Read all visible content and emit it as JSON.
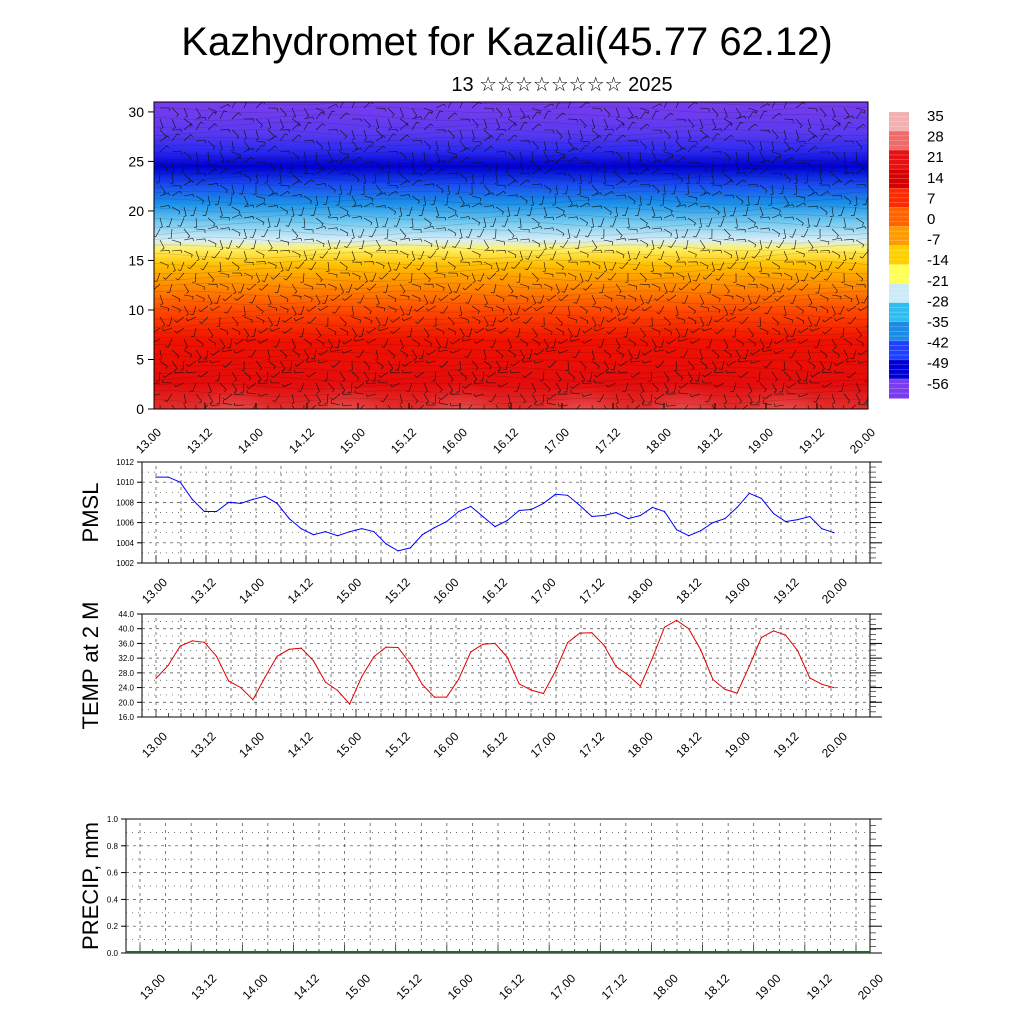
{
  "header": {
    "title": "Kazhydromet for Kazali(45.77 62.12)",
    "subtitle": "13 ☆☆☆☆☆☆☆☆ 2025"
  },
  "chart_data": [
    {
      "type": "heatmap",
      "name": "cross-section",
      "ylim": [
        0,
        31
      ],
      "yticks": [
        "0",
        "5",
        "10",
        "15",
        "20",
        "25",
        "30"
      ],
      "xticks": [
        "13.00",
        "13.12",
        "14.00",
        "14.12",
        "15.00",
        "15.12",
        "16.00",
        "16.12",
        "17.00",
        "17.12",
        "18.00",
        "18.12",
        "19.00",
        "19.12",
        "20.00"
      ],
      "colorbar": {
        "labels": [
          "35",
          "28",
          "21",
          "14",
          "7",
          "0",
          "-7",
          "-14",
          "-21",
          "-28",
          "-35",
          "-42",
          "-49",
          "-56"
        ],
        "colors": [
          "#f2b0b0",
          "#ef6a6a",
          "#e81010",
          "#d60000",
          "#ff2a00",
          "#ff6400",
          "#ff9a00",
          "#ffcf00",
          "#ffff55",
          "#cdebf7",
          "#2ebdf0",
          "#1a8ce8",
          "#2040ff",
          "#0000d6",
          "#7a3cf0"
        ]
      },
      "overlay": "wind-barbs"
    },
    {
      "type": "line",
      "ylabel": "PMSL",
      "ylim": [
        1002,
        1012
      ],
      "yticks": [
        "1002",
        "1004",
        "1006",
        "1008",
        "1010",
        "1012"
      ],
      "xticks": [
        "13.00",
        "13.12",
        "14.00",
        "14.12",
        "15.00",
        "15.12",
        "16.00",
        "16.12",
        "17.00",
        "17.12",
        "18.00",
        "18.12",
        "19.00",
        "19.12",
        "20.00"
      ],
      "grid": true,
      "series": [
        {
          "color": "#0000ff",
          "values": [
            1010.5,
            1010.5,
            1010.0,
            1008.3,
            1007.1,
            1007.1,
            1008.0,
            1007.9,
            1008.3,
            1008.6,
            1007.9,
            1006.4,
            1005.4,
            1004.8,
            1005.1,
            1004.7,
            1005.1,
            1005.4,
            1005.1,
            1003.9,
            1003.2,
            1003.5,
            1004.8,
            1005.5,
            1006.1,
            1007.1,
            1007.6,
            1006.6,
            1005.6,
            1006.2,
            1007.2,
            1007.3,
            1007.9,
            1008.8,
            1008.7,
            1007.7,
            1006.6,
            1006.7,
            1007.0,
            1006.4,
            1006.7,
            1007.5,
            1007.1,
            1005.3,
            1004.7,
            1005.2,
            1006.0,
            1006.4,
            1007.5,
            1008.9,
            1008.4,
            1006.9,
            1006.1,
            1006.3,
            1006.6,
            1005.4,
            1005.0
          ]
        }
      ]
    },
    {
      "type": "line",
      "ylabel": "TEMP at 2 M",
      "ylim": [
        16,
        44
      ],
      "yticks": [
        "16.0",
        "20.0",
        "24.0",
        "28.0",
        "32.0",
        "36.0",
        "40.0",
        "44.0"
      ],
      "xticks": [
        "13.00",
        "13.12",
        "14.00",
        "14.12",
        "15.00",
        "15.12",
        "16.00",
        "16.12",
        "17.00",
        "17.12",
        "18.00",
        "18.12",
        "19.00",
        "19.12",
        "20.00"
      ],
      "grid": true,
      "series": [
        {
          "color": "#e00000",
          "values": [
            26.5,
            30.0,
            35.3,
            36.7,
            36.3,
            32.5,
            25.8,
            24.0,
            20.7,
            26.8,
            32.5,
            34.4,
            34.7,
            31.3,
            25.5,
            23.2,
            19.5,
            27.0,
            32.4,
            35.0,
            34.9,
            30.5,
            24.8,
            21.4,
            21.4,
            26.3,
            33.7,
            35.8,
            36.0,
            32.3,
            25.0,
            23.3,
            22.4,
            28.5,
            36.2,
            38.8,
            38.9,
            35.5,
            29.7,
            27.4,
            24.4,
            32.0,
            40.4,
            42.3,
            40.0,
            34.2,
            26.2,
            23.5,
            22.5,
            29.8,
            37.6,
            39.4,
            38.3,
            34.0,
            26.6,
            24.9,
            24.0
          ]
        }
      ]
    },
    {
      "type": "bar",
      "ylabel": "PRECIP, mm",
      "ylim": [
        0,
        1
      ],
      "yticks": [
        "0.0",
        "0.2",
        "0.4",
        "0.6",
        "0.8",
        "1.0"
      ],
      "xticks": [
        "13.00",
        "13.12",
        "14.00",
        "14.12",
        "15.00",
        "15.12",
        "16.00",
        "16.12",
        "17.00",
        "17.12",
        "18.00",
        "18.12",
        "19.00",
        "19.12",
        "20.00"
      ],
      "grid": true,
      "values": [
        0,
        0,
        0,
        0,
        0,
        0,
        0,
        0,
        0,
        0,
        0,
        0,
        0,
        0
      ]
    }
  ]
}
